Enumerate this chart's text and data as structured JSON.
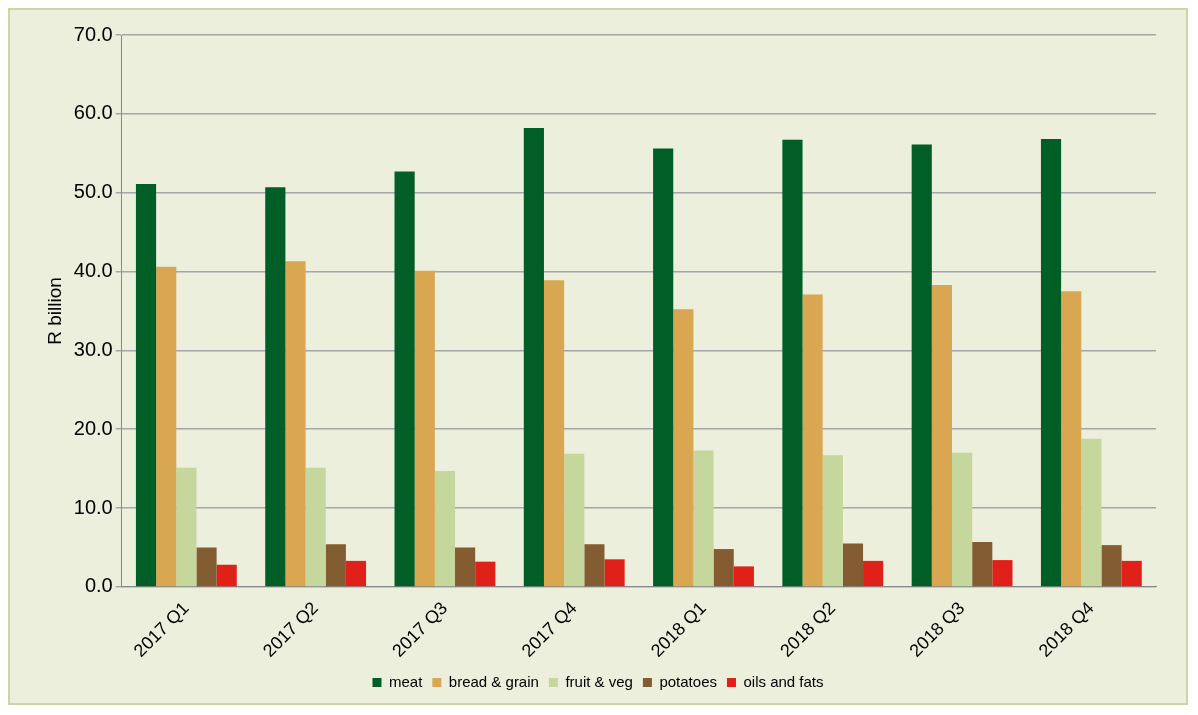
{
  "chart_data": {
    "type": "bar",
    "ylabel": "R billion",
    "categories": [
      "2017 Q1",
      "2017 Q2",
      "2017 Q3",
      "2017 Q4",
      "2018 Q1",
      "2018 Q2",
      "2018 Q3",
      "2018 Q4"
    ],
    "series": [
      {
        "name": "meat",
        "color": "#025e27",
        "values": [
          51.1,
          50.7,
          52.7,
          58.2,
          55.6,
          56.7,
          56.1,
          56.8
        ]
      },
      {
        "name": "bread & grain",
        "color": "#d9a752",
        "values": [
          40.6,
          41.3,
          40.1,
          38.9,
          35.2,
          37.1,
          38.3,
          37.5
        ]
      },
      {
        "name": "fruit & veg",
        "color": "#c5d79d",
        "values": [
          15.1,
          15.1,
          14.7,
          16.9,
          17.3,
          16.7,
          17.0,
          18.8
        ]
      },
      {
        "name": "potatoes",
        "color": "#835c31",
        "values": [
          5.0,
          5.4,
          5.0,
          5.4,
          4.8,
          5.5,
          5.7,
          5.3
        ]
      },
      {
        "name": "oils and fats",
        "color": "#e0211a",
        "values": [
          2.8,
          3.3,
          3.2,
          3.5,
          2.6,
          3.3,
          3.4,
          3.3
        ]
      }
    ],
    "ylim": [
      0,
      70
    ],
    "yticks": [
      {
        "value": 0,
        "label": "0.0"
      },
      {
        "value": 10,
        "label": "10.0"
      },
      {
        "value": 20,
        "label": "20.0"
      },
      {
        "value": 30,
        "label": "30.0"
      },
      {
        "value": 40,
        "label": "40.0"
      },
      {
        "value": 50,
        "label": "50.0"
      },
      {
        "value": 60,
        "label": "60.0"
      },
      {
        "value": 70,
        "label": "70.0"
      }
    ],
    "grid": "y",
    "legend": "bottom"
  }
}
